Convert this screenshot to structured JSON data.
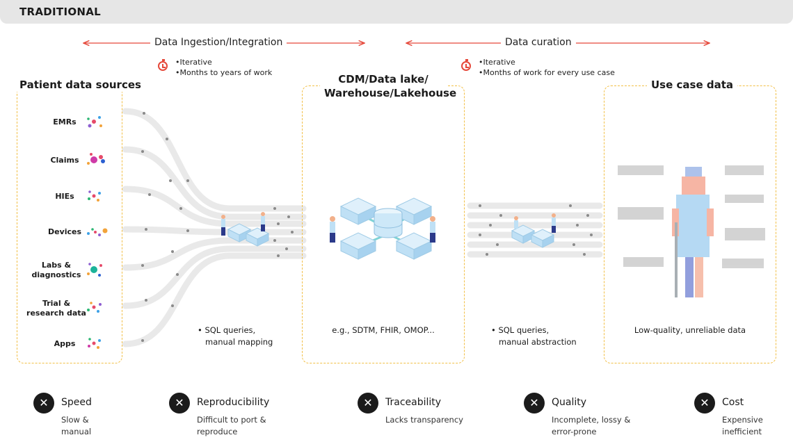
{
  "header": {
    "title": "TRADITIONAL"
  },
  "phases": [
    {
      "label": "Data Ingestion/Integration",
      "notes": [
        "•Iterative",
        "•Months to years of work"
      ]
    },
    {
      "label": "Data curation",
      "notes": [
        "•Iterative",
        "•Months of work for every use case"
      ]
    }
  ],
  "sources": {
    "title": "Patient data sources",
    "items": [
      "EMRs",
      "Claims",
      "HIEs",
      "Devices",
      "Labs & diagnostics",
      "Trial & research data",
      "Apps"
    ]
  },
  "ingest_caption": [
    "• SQL queries,",
    "manual mapping"
  ],
  "cdm": {
    "title": "CDM/Data lake/ Warehouse/Lakehouse",
    "caption": "e.g., SDTM, FHIR, OMOP..."
  },
  "curation_caption": [
    "• SQL queries,",
    "manual abstraction"
  ],
  "usecase": {
    "title": "Use case data",
    "caption": "Low-quality, unreliable data"
  },
  "metrics": [
    {
      "title": "Speed",
      "desc": [
        "Slow &",
        "manual"
      ]
    },
    {
      "title": "Reproducibility",
      "desc": [
        "Difficult to port &",
        "reproduce"
      ]
    },
    {
      "title": "Traceability",
      "desc": [
        "Lacks transparency"
      ]
    },
    {
      "title": "Quality",
      "desc": [
        "Incomplete, lossy &",
        "error-prone"
      ]
    },
    {
      "title": "Cost",
      "desc": [
        "Expensive",
        "inefficient"
      ]
    }
  ],
  "colors": {
    "accent_red": "#e5483a",
    "dashed_yellow": "#f2bf45",
    "cube_blue": "#bfe0f5",
    "dark": "#1b1b1b"
  },
  "icons": [
    "timer-icon",
    "x-circle-icon",
    "database-icon",
    "worker-icon"
  ]
}
